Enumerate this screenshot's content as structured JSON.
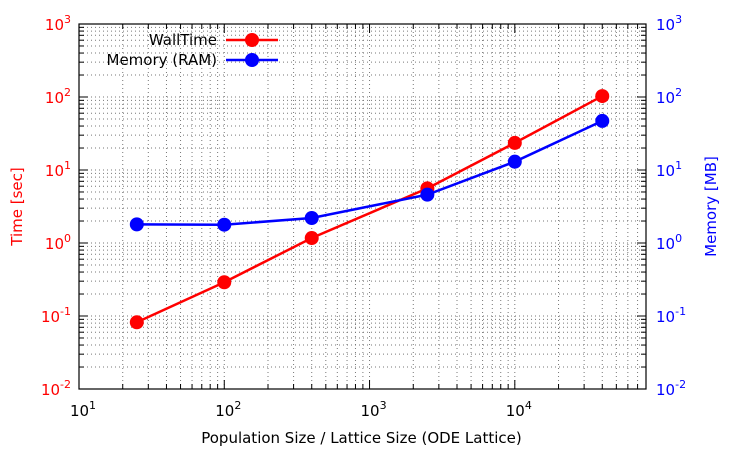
{
  "chart_data": {
    "type": "line",
    "xlabel": "Population Size / Lattice Size (ODE Lattice)",
    "ylabel_left": "Time [sec]",
    "ylabel_right": "Memory [MB]",
    "x_scale": "log",
    "y_scale": "log",
    "xlim": [
      10,
      80000
    ],
    "ylim_left": [
      0.01,
      1000
    ],
    "ylim_right": [
      0.01,
      1000
    ],
    "x_ticks": [
      {
        "base": "10",
        "exp": "1",
        "value": 10
      },
      {
        "base": "10",
        "exp": "2",
        "value": 100
      },
      {
        "base": "10",
        "exp": "3",
        "value": 1000
      },
      {
        "base": "10",
        "exp": "4",
        "value": 10000
      }
    ],
    "y_ticks_left": [
      {
        "base": "10",
        "exp": "-2",
        "value": 0.01
      },
      {
        "base": "10",
        "exp": "-1",
        "value": 0.1
      },
      {
        "base": "10",
        "exp": "0",
        "value": 1
      },
      {
        "base": "10",
        "exp": "1",
        "value": 10
      },
      {
        "base": "10",
        "exp": "2",
        "value": 100
      },
      {
        "base": "10",
        "exp": "3",
        "value": 1000
      }
    ],
    "y_ticks_right": [
      {
        "base": "10",
        "exp": "-2",
        "value": 0.01
      },
      {
        "base": "10",
        "exp": "-1",
        "value": 0.1
      },
      {
        "base": "10",
        "exp": "0",
        "value": 1
      },
      {
        "base": "10",
        "exp": "1",
        "value": 10
      },
      {
        "base": "10",
        "exp": "2",
        "value": 100
      },
      {
        "base": "10",
        "exp": "3",
        "value": 1000
      }
    ],
    "grid": true,
    "legend_position": "top-left",
    "series": [
      {
        "name": "WallTime",
        "axis": "left",
        "color": "#ff0000",
        "x": [
          25,
          100,
          400,
          2500,
          10000,
          40000
        ],
        "y": [
          0.082,
          0.29,
          1.17,
          5.6,
          23.5,
          103
        ]
      },
      {
        "name": "Memory (RAM)",
        "axis": "right",
        "color": "#0000ff",
        "x": [
          25,
          100,
          400,
          2500,
          10000,
          40000
        ],
        "y": [
          1.8,
          1.78,
          2.2,
          4.6,
          13,
          47
        ]
      }
    ],
    "colors": {
      "left_axis": "#ff0000",
      "right_axis": "#0000ff",
      "grid": "#777777",
      "frame": "#000000"
    }
  }
}
